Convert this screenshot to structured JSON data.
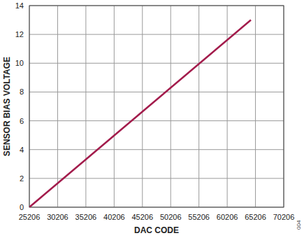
{
  "chart_data": {
    "type": "line",
    "x_label": "DAC CODE",
    "y_label": "SENSOR BIAS VOLTAGE",
    "annotation": "004",
    "x": [
      25206,
      64400
    ],
    "values": [
      0,
      13
    ],
    "color": "#a31c4c",
    "xlim": [
      25206,
      70206
    ],
    "xticks": [
      25206,
      30206,
      35206,
      40206,
      45206,
      50206,
      55206,
      60206,
      65206,
      70206
    ],
    "ylim": [
      0,
      14
    ],
    "yticks": [
      0,
      2,
      4,
      6,
      8,
      10,
      12,
      14
    ],
    "grid": true
  }
}
